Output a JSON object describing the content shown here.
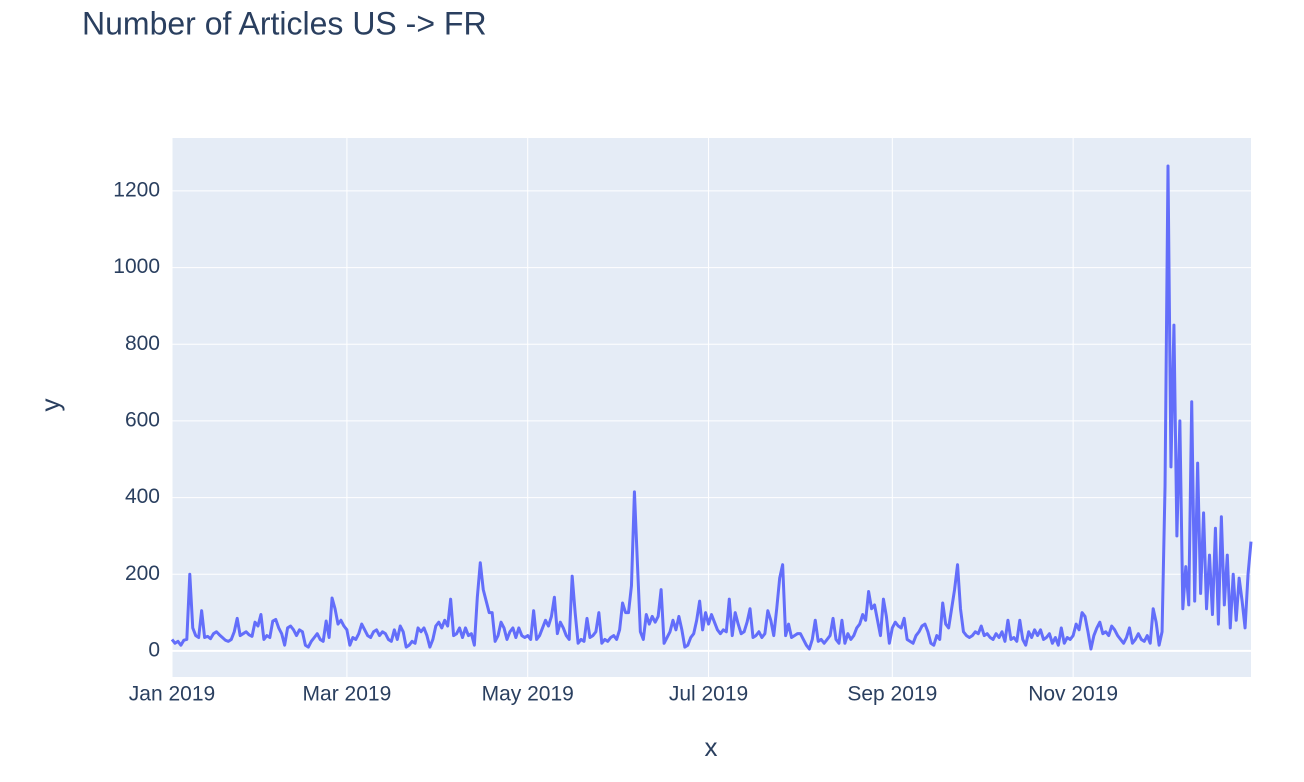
{
  "chart_data": {
    "type": "line",
    "title": "Number of Articles US -> FR",
    "x_label": "x",
    "y_label": "y",
    "x": [
      "2019-01-01",
      "2019-01-02",
      "2019-01-03",
      "2019-01-04",
      "2019-01-05",
      "2019-01-06",
      "2019-01-07",
      "2019-01-08",
      "2019-01-09",
      "2019-01-10",
      "2019-01-11",
      "2019-01-12",
      "2019-01-13",
      "2019-01-14",
      "2019-01-15",
      "2019-01-16",
      "2019-01-17",
      "2019-01-18",
      "2019-01-19",
      "2019-01-20",
      "2019-01-21",
      "2019-01-22",
      "2019-01-23",
      "2019-01-24",
      "2019-01-25",
      "2019-01-26",
      "2019-01-27",
      "2019-01-28",
      "2019-01-29",
      "2019-01-30",
      "2019-01-31",
      "2019-02-01",
      "2019-02-02",
      "2019-02-03",
      "2019-02-04",
      "2019-02-05",
      "2019-02-06",
      "2019-02-07",
      "2019-02-08",
      "2019-02-09",
      "2019-02-10",
      "2019-02-11",
      "2019-02-12",
      "2019-02-13",
      "2019-02-14",
      "2019-02-15",
      "2019-02-16",
      "2019-02-17",
      "2019-02-18",
      "2019-02-19",
      "2019-02-20",
      "2019-02-21",
      "2019-02-22",
      "2019-02-23",
      "2019-02-24",
      "2019-02-25",
      "2019-02-26",
      "2019-02-27",
      "2019-02-28",
      "2019-03-01",
      "2019-03-02",
      "2019-03-03",
      "2019-03-04",
      "2019-03-05",
      "2019-03-06",
      "2019-03-07",
      "2019-03-08",
      "2019-03-09",
      "2019-03-10",
      "2019-03-11",
      "2019-03-12",
      "2019-03-13",
      "2019-03-14",
      "2019-03-15",
      "2019-03-16",
      "2019-03-17",
      "2019-03-18",
      "2019-03-19",
      "2019-03-20",
      "2019-03-21",
      "2019-03-22",
      "2019-03-23",
      "2019-03-24",
      "2019-03-25",
      "2019-03-26",
      "2019-03-27",
      "2019-03-28",
      "2019-03-29",
      "2019-03-30",
      "2019-03-31",
      "2019-04-01",
      "2019-04-02",
      "2019-04-03",
      "2019-04-04",
      "2019-04-05",
      "2019-04-06",
      "2019-04-07",
      "2019-04-08",
      "2019-04-09",
      "2019-04-10",
      "2019-04-11",
      "2019-04-12",
      "2019-04-13",
      "2019-04-14",
      "2019-04-15",
      "2019-04-16",
      "2019-04-17",
      "2019-04-18",
      "2019-04-19",
      "2019-04-20",
      "2019-04-21",
      "2019-04-22",
      "2019-04-23",
      "2019-04-24",
      "2019-04-25",
      "2019-04-26",
      "2019-04-27",
      "2019-04-28",
      "2019-04-29",
      "2019-04-30",
      "2019-05-01",
      "2019-05-02",
      "2019-05-03",
      "2019-05-04",
      "2019-05-05",
      "2019-05-06",
      "2019-05-07",
      "2019-05-08",
      "2019-05-09",
      "2019-05-10",
      "2019-05-11",
      "2019-05-12",
      "2019-05-13",
      "2019-05-14",
      "2019-05-15",
      "2019-05-16",
      "2019-05-17",
      "2019-05-18",
      "2019-05-19",
      "2019-05-20",
      "2019-05-21",
      "2019-05-22",
      "2019-05-23",
      "2019-05-24",
      "2019-05-25",
      "2019-05-26",
      "2019-05-27",
      "2019-05-28",
      "2019-05-29",
      "2019-05-30",
      "2019-05-31",
      "2019-06-01",
      "2019-06-02",
      "2019-06-03",
      "2019-06-04",
      "2019-06-05",
      "2019-06-06",
      "2019-06-07",
      "2019-06-08",
      "2019-06-09",
      "2019-06-10",
      "2019-06-11",
      "2019-06-12",
      "2019-06-13",
      "2019-06-14",
      "2019-06-15",
      "2019-06-16",
      "2019-06-17",
      "2019-06-18",
      "2019-06-19",
      "2019-06-20",
      "2019-06-21",
      "2019-06-22",
      "2019-06-23",
      "2019-06-24",
      "2019-06-25",
      "2019-06-26",
      "2019-06-27",
      "2019-06-28",
      "2019-06-29",
      "2019-06-30",
      "2019-07-01",
      "2019-07-02",
      "2019-07-03",
      "2019-07-04",
      "2019-07-05",
      "2019-07-06",
      "2019-07-07",
      "2019-07-08",
      "2019-07-09",
      "2019-07-10",
      "2019-07-11",
      "2019-07-12",
      "2019-07-13",
      "2019-07-14",
      "2019-07-15",
      "2019-07-16",
      "2019-07-17",
      "2019-07-18",
      "2019-07-19",
      "2019-07-20",
      "2019-07-21",
      "2019-07-22",
      "2019-07-23",
      "2019-07-24",
      "2019-07-25",
      "2019-07-26",
      "2019-07-27",
      "2019-07-28",
      "2019-07-29",
      "2019-07-30",
      "2019-07-31",
      "2019-08-01",
      "2019-08-02",
      "2019-08-03",
      "2019-08-04",
      "2019-08-05",
      "2019-08-06",
      "2019-08-07",
      "2019-08-08",
      "2019-08-09",
      "2019-08-10",
      "2019-08-11",
      "2019-08-12",
      "2019-08-13",
      "2019-08-14",
      "2019-08-15",
      "2019-08-16",
      "2019-08-17",
      "2019-08-18",
      "2019-08-19",
      "2019-08-20",
      "2019-08-21",
      "2019-08-22",
      "2019-08-23",
      "2019-08-24",
      "2019-08-25",
      "2019-08-26",
      "2019-08-27",
      "2019-08-28",
      "2019-08-29",
      "2019-08-30",
      "2019-08-31",
      "2019-09-01",
      "2019-09-02",
      "2019-09-03",
      "2019-09-04",
      "2019-09-05",
      "2019-09-06",
      "2019-09-07",
      "2019-09-08",
      "2019-09-09",
      "2019-09-10",
      "2019-09-11",
      "2019-09-12",
      "2019-09-13",
      "2019-09-14",
      "2019-09-15",
      "2019-09-16",
      "2019-09-17",
      "2019-09-18",
      "2019-09-19",
      "2019-09-20",
      "2019-09-21",
      "2019-09-22",
      "2019-09-23",
      "2019-09-24",
      "2019-09-25",
      "2019-09-26",
      "2019-09-27",
      "2019-09-28",
      "2019-09-29",
      "2019-09-30",
      "2019-10-01",
      "2019-10-02",
      "2019-10-03",
      "2019-10-04",
      "2019-10-05",
      "2019-10-06",
      "2019-10-07",
      "2019-10-08",
      "2019-10-09",
      "2019-10-10",
      "2019-10-11",
      "2019-10-12",
      "2019-10-13",
      "2019-10-14",
      "2019-10-15",
      "2019-10-16",
      "2019-10-17",
      "2019-10-18",
      "2019-10-19",
      "2019-10-20",
      "2019-10-21",
      "2019-10-22",
      "2019-10-23",
      "2019-10-24",
      "2019-10-25",
      "2019-10-26",
      "2019-10-27",
      "2019-10-28",
      "2019-10-29",
      "2019-10-30",
      "2019-10-31",
      "2019-11-01",
      "2019-11-02",
      "2019-11-03",
      "2019-11-04",
      "2019-11-05",
      "2019-11-06",
      "2019-11-07",
      "2019-11-08",
      "2019-11-09",
      "2019-11-10",
      "2019-11-11",
      "2019-11-12",
      "2019-11-13",
      "2019-11-14",
      "2019-11-15",
      "2019-11-16",
      "2019-11-17",
      "2019-11-18",
      "2019-11-19",
      "2019-11-20",
      "2019-11-21",
      "2019-11-22",
      "2019-11-23",
      "2019-11-24",
      "2019-11-25",
      "2019-11-26",
      "2019-11-27",
      "2019-11-28",
      "2019-11-29",
      "2019-11-30",
      "2019-12-01",
      "2019-12-02",
      "2019-12-03",
      "2019-12-04",
      "2019-12-05",
      "2019-12-06",
      "2019-12-07",
      "2019-12-08",
      "2019-12-09",
      "2019-12-10",
      "2019-12-11",
      "2019-12-12",
      "2019-12-13",
      "2019-12-14",
      "2019-12-15",
      "2019-12-16",
      "2019-12-17",
      "2019-12-18",
      "2019-12-19",
      "2019-12-20",
      "2019-12-21",
      "2019-12-22",
      "2019-12-23",
      "2019-12-24",
      "2019-12-25",
      "2019-12-26",
      "2019-12-27",
      "2019-12-28",
      "2019-12-29",
      "2019-12-30",
      "2019-12-31"
    ],
    "series": [
      {
        "color": "#636efa",
        "values": [
          30,
          20,
          25,
          15,
          28,
          30,
          200,
          60,
          40,
          35,
          105,
          35,
          38,
          32,
          45,
          50,
          42,
          35,
          28,
          25,
          30,
          50,
          85,
          40,
          45,
          50,
          42,
          38,
          75,
          65,
          95,
          30,
          40,
          35,
          78,
          82,
          60,
          45,
          15,
          60,
          65,
          55,
          40,
          55,
          50,
          15,
          10,
          25,
          35,
          45,
          30,
          25,
          78,
          35,
          138,
          110,
          70,
          80,
          65,
          55,
          15,
          35,
          30,
          45,
          70,
          55,
          40,
          35,
          50,
          55,
          40,
          50,
          45,
          30,
          25,
          55,
          30,
          65,
          50,
          10,
          15,
          25,
          20,
          60,
          50,
          60,
          40,
          10,
          30,
          65,
          75,
          60,
          80,
          65,
          135,
          40,
          45,
          60,
          35,
          60,
          40,
          45,
          15,
          140,
          230,
          160,
          130,
          100,
          100,
          25,
          40,
          75,
          60,
          30,
          50,
          60,
          35,
          60,
          40,
          35,
          40,
          30,
          105,
          30,
          40,
          60,
          80,
          65,
          90,
          140,
          45,
          75,
          60,
          40,
          30,
          195,
          100,
          20,
          30,
          25,
          85,
          35,
          40,
          50,
          100,
          20,
          30,
          25,
          35,
          40,
          30,
          55,
          125,
          100,
          100,
          170,
          415,
          230,
          50,
          30,
          95,
          70,
          90,
          75,
          90,
          160,
          20,
          35,
          50,
          80,
          55,
          90,
          55,
          10,
          15,
          35,
          45,
          80,
          130,
          55,
          100,
          70,
          95,
          75,
          55,
          45,
          55,
          50,
          135,
          40,
          100,
          70,
          45,
          50,
          75,
          110,
          35,
          40,
          50,
          35,
          45,
          105,
          80,
          40,
          110,
          190,
          225,
          40,
          70,
          35,
          40,
          45,
          45,
          30,
          15,
          5,
          30,
          80,
          25,
          30,
          20,
          30,
          40,
          85,
          30,
          20,
          80,
          20,
          45,
          30,
          40,
          60,
          70,
          95,
          80,
          155,
          110,
          120,
          80,
          40,
          135,
          90,
          20,
          60,
          75,
          65,
          60,
          85,
          30,
          25,
          20,
          40,
          50,
          65,
          70,
          50,
          20,
          15,
          40,
          30,
          125,
          70,
          60,
          110,
          160,
          225,
          110,
          50,
          40,
          35,
          40,
          50,
          45,
          65,
          40,
          45,
          35,
          30,
          45,
          35,
          50,
          25,
          80,
          30,
          35,
          25,
          80,
          30,
          15,
          50,
          35,
          55,
          40,
          55,
          30,
          35,
          45,
          20,
          35,
          15,
          60,
          20,
          35,
          30,
          40,
          70,
          55,
          100,
          90,
          50,
          5,
          40,
          60,
          75,
          45,
          50,
          40,
          65,
          55,
          40,
          30,
          20,
          35,
          60,
          20,
          30,
          45,
          30,
          25,
          40,
          20,
          110,
          75,
          15,
          50,
          430,
          1265,
          480,
          850,
          300,
          600,
          110,
          220,
          120,
          650,
          130,
          490,
          150,
          360,
          110,
          250,
          95,
          320,
          70,
          350,
          120,
          250,
          60,
          200,
          80,
          190,
          130,
          60,
          200,
          285
        ]
      }
    ],
    "xlim": [
      "2019-01-01",
      "2019-12-31"
    ],
    "xticks": [
      {
        "value": "2019-01-01",
        "label": "Jan 2019"
      },
      {
        "value": "2019-03-01",
        "label": "Mar 2019"
      },
      {
        "value": "2019-05-01",
        "label": "May 2019"
      },
      {
        "value": "2019-07-01",
        "label": "Jul 2019"
      },
      {
        "value": "2019-09-01",
        "label": "Sep 2019"
      },
      {
        "value": "2019-11-01",
        "label": "Nov 2019"
      }
    ],
    "ylim": [
      -68,
      1338
    ],
    "yticks": [
      0,
      200,
      400,
      600,
      800,
      1000,
      1200
    ],
    "grid": true
  }
}
